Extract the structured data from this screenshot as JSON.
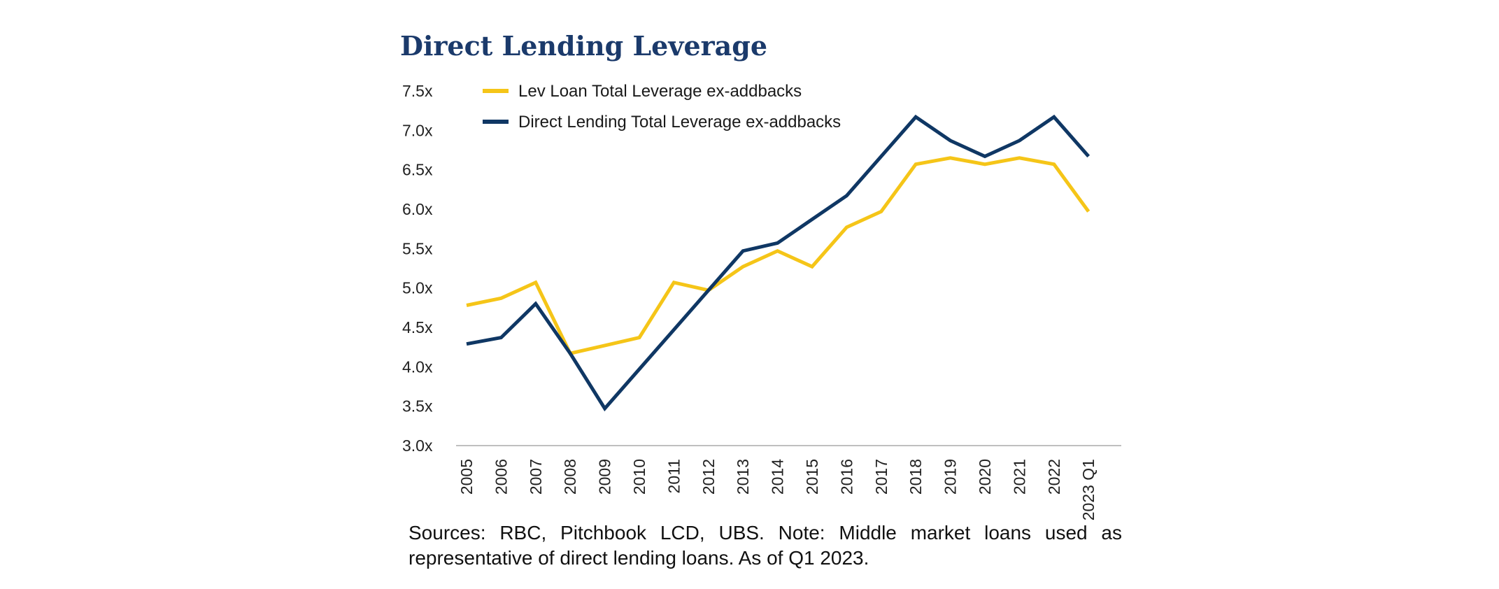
{
  "chart_data": {
    "type": "line",
    "title": "Direct Lending Leverage",
    "xlabel": "",
    "ylabel": "",
    "categories": [
      "2005",
      "2006",
      "2007",
      "2008",
      "2009",
      "2010",
      "2011",
      "2012",
      "2013",
      "2014",
      "2015",
      "2016",
      "2017",
      "2018",
      "2019",
      "2020",
      "2021",
      "2022",
      "2023 Q1"
    ],
    "yticks": [
      "3.0x",
      "3.5x",
      "4.0x",
      "4.5x",
      "5.0x",
      "5.5x",
      "6.0x",
      "6.5x",
      "7.0x",
      "7.5x"
    ],
    "ylim": [
      3.0,
      7.5
    ],
    "grid": false,
    "legend_position": "top-left",
    "series": [
      {
        "name": "Lev Loan Total Leverage ex-addbacks",
        "color": "#f5c518",
        "values": [
          4.78,
          4.87,
          5.07,
          4.17,
          4.27,
          4.37,
          5.07,
          4.97,
          5.27,
          5.47,
          5.27,
          5.77,
          5.97,
          6.57,
          6.65,
          6.57,
          6.65,
          6.57,
          5.97
        ]
      },
      {
        "name": "Direct Lending Total Leverage ex-addbacks",
        "color": "#0f3764",
        "values": [
          4.29,
          4.37,
          4.8,
          4.17,
          3.47,
          3.97,
          4.47,
          4.97,
          5.47,
          5.57,
          5.87,
          6.17,
          6.67,
          7.17,
          6.87,
          6.67,
          6.87,
          7.17,
          6.67
        ]
      }
    ]
  },
  "footnote": "Sources: RBC, Pitchbook LCD, UBS. Note: Middle market loans used as representative of direct lending loans. As of Q1 2023.",
  "colors": {
    "title": "#1b3a6b",
    "axis": "#bfbfbf",
    "text": "#222222"
  }
}
